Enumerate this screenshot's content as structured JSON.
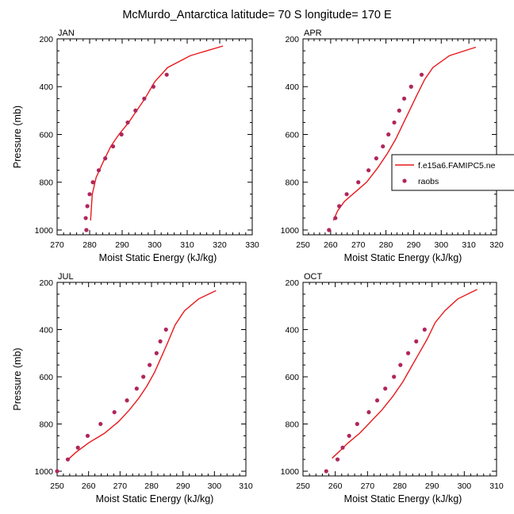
{
  "figure": {
    "title": "McMurdo_Antarctica  latitude= 70 S longitude= 170 E"
  },
  "legend": {
    "entries": [
      {
        "label": "f.e15a6.FAMIPC5.ne",
        "style": "line",
        "color": "#e8191c"
      },
      {
        "label": "raobs",
        "style": "marker",
        "color": "#b0265c"
      }
    ]
  },
  "colors": {
    "model_line": "#e8191c",
    "obs_marker": "#b0265c"
  },
  "chart_data": [
    {
      "type": "line",
      "label": "JAN",
      "xlabel": "Moist Static Energy (kJ/kg)",
      "ylabel": "Pressure (mb)",
      "xlim": [
        270,
        330
      ],
      "xticks": [
        270,
        280,
        290,
        300,
        310,
        320,
        330
      ],
      "ylim": [
        1020,
        200
      ],
      "yticks": [
        200,
        400,
        600,
        800,
        1000
      ],
      "y_reversed": true,
      "series": [
        {
          "name": "f.e15a6.FAMIPC5.ne",
          "kind": "line",
          "x": [
            280.3,
            280.8,
            282.0,
            284.0,
            286.5,
            289.0,
            292.0,
            294.5,
            297.0,
            300.0,
            304.0,
            311.0,
            321.0
          ],
          "y": [
            960,
            850,
            780,
            720,
            650,
            600,
            550,
            500,
            450,
            380,
            320,
            270,
            230
          ]
        },
        {
          "name": "raobs",
          "kind": "scatter",
          "x": [
            279.0,
            278.8,
            279.3,
            280.0,
            281.0,
            282.8,
            284.8,
            287.2,
            289.8,
            291.7,
            294.1,
            296.8,
            299.6,
            303.7
          ],
          "y": [
            1000,
            950,
            900,
            850,
            800,
            750,
            700,
            650,
            600,
            550,
            500,
            450,
            400,
            350
          ]
        }
      ]
    },
    {
      "type": "line",
      "label": "APR",
      "xlabel": "Moist Static Energy (kJ/kg)",
      "ylabel": "",
      "xlim": [
        250,
        320
      ],
      "xticks": [
        250,
        260,
        270,
        280,
        290,
        300,
        310,
        320
      ],
      "ylim": [
        1020,
        200
      ],
      "yticks": [
        200,
        400,
        600,
        800,
        1000
      ],
      "y_reversed": true,
      "series": [
        {
          "name": "f.e15a6.FAMIPC5.ne",
          "kind": "line",
          "x": [
            261.0,
            262.5,
            265.0,
            269.0,
            273.0,
            277.0,
            280.5,
            283.5,
            286.0,
            288.5,
            291.0,
            294.0,
            297.0,
            303.0,
            312.5
          ],
          "y": [
            960,
            920,
            880,
            840,
            800,
            740,
            680,
            620,
            560,
            500,
            440,
            370,
            320,
            270,
            235
          ]
        },
        {
          "name": "raobs",
          "kind": "scatter",
          "x": [
            259.4,
            261.7,
            263.1,
            265.8,
            270.0,
            273.7,
            276.5,
            278.9,
            280.9,
            283.0,
            284.8,
            286.6,
            289.1,
            292.9
          ],
          "y": [
            1000,
            950,
            900,
            850,
            800,
            750,
            700,
            650,
            600,
            550,
            500,
            450,
            400,
            350
          ]
        }
      ]
    },
    {
      "type": "line",
      "label": "JUL",
      "xlabel": "Moist Static Energy (kJ/kg)",
      "ylabel": "Pressure (mb)",
      "xlim": [
        250,
        310
      ],
      "xticks": [
        250,
        260,
        270,
        280,
        290,
        300,
        310
      ],
      "ylim": [
        1020,
        200
      ],
      "yticks": [
        200,
        400,
        600,
        800,
        1000
      ],
      "y_reversed": true,
      "series": [
        {
          "name": "f.e15a6.FAMIPC5.ne",
          "kind": "line",
          "x": [
            253.5,
            256.0,
            260.0,
            265.0,
            269.5,
            273.0,
            276.0,
            278.5,
            281.0,
            283.0,
            285.0,
            287.5,
            290.5,
            295.0,
            300.5
          ],
          "y": [
            950,
            920,
            880,
            840,
            790,
            740,
            690,
            640,
            580,
            520,
            460,
            380,
            320,
            270,
            235
          ]
        },
        {
          "name": "raobs",
          "kind": "scatter",
          "x": [
            250.0,
            253.4,
            256.6,
            259.7,
            263.8,
            268.2,
            272.2,
            275.3,
            277.4,
            279.4,
            281.6,
            282.8,
            284.6
          ],
          "y": [
            1000,
            950,
            900,
            850,
            800,
            750,
            700,
            650,
            600,
            550,
            500,
            450,
            400
          ]
        }
      ]
    },
    {
      "type": "line",
      "label": "OCT",
      "xlabel": "Moist Static Energy (kJ/kg)",
      "ylabel": "",
      "xlim": [
        250,
        310
      ],
      "xticks": [
        250,
        260,
        270,
        280,
        290,
        300,
        310
      ],
      "ylim": [
        1020,
        200
      ],
      "yticks": [
        200,
        400,
        600,
        800,
        1000
      ],
      "y_reversed": true,
      "series": [
        {
          "name": "f.e15a6.FAMIPC5.ne",
          "kind": "line",
          "x": [
            259.0,
            261.0,
            264.0,
            267.5,
            271.0,
            274.5,
            278.0,
            281.0,
            283.5,
            286.0,
            288.5,
            291.0,
            294.0,
            298.0,
            304.0
          ],
          "y": [
            945,
            920,
            880,
            840,
            790,
            740,
            680,
            620,
            560,
            500,
            440,
            370,
            320,
            270,
            230
          ]
        },
        {
          "name": "raobs",
          "kind": "scatter",
          "x": [
            257.2,
            260.7,
            262.3,
            264.3,
            266.8,
            270.4,
            273.0,
            275.5,
            278.2,
            280.2,
            282.6,
            285.1,
            287.7
          ],
          "y": [
            1000,
            950,
            900,
            850,
            800,
            750,
            700,
            650,
            600,
            550,
            500,
            450,
            400
          ]
        }
      ]
    }
  ]
}
